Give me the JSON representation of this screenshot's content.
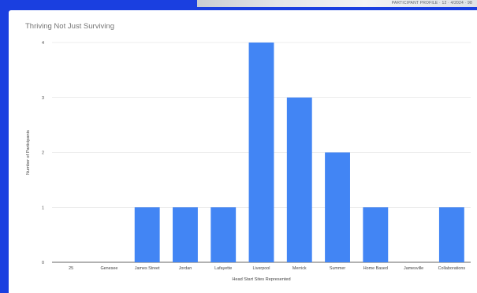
{
  "window": {
    "top_strip_text": "PARTICIPANT PROFILE · 12 · 4/2024 · 98"
  },
  "chart_data": {
    "type": "bar",
    "title": "Thriving Not Just Surviving",
    "xlabel": "Head Start Sites Represented",
    "ylabel": "Number of Participants",
    "categories": [
      "25",
      "Genesee",
      "James Street",
      "Jordan",
      "Lafayette",
      "Liverpool",
      "Merrick",
      "Summer",
      "Home Based",
      "Jamesville",
      "Collaborations"
    ],
    "values": [
      0,
      0,
      1,
      1,
      1,
      4,
      3,
      2,
      1,
      0,
      1
    ],
    "ylim": [
      0,
      4
    ],
    "yticks": [
      "0",
      "1",
      "2",
      "3",
      "4"
    ],
    "grid": true,
    "legend": "none",
    "bar_color": "#4285f4"
  }
}
